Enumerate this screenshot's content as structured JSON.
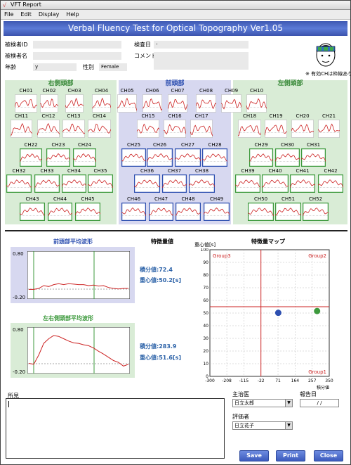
{
  "window": {
    "title": "VFT Report"
  },
  "menu": [
    "File",
    "Edit",
    "Display",
    "Help"
  ],
  "banner": "Verbal Fluency Test for Optical Topography Ver1.05",
  "patient": {
    "id_label": "被検者ID",
    "id_value": "",
    "name_label": "被検者名",
    "name_value": "",
    "age_label": "年齢",
    "age_value": "y",
    "sex_label": "性別",
    "sex_value": "Female",
    "date_label": "検査日",
    "date_value": "-",
    "comment_label": "コメント",
    "comment_value": ""
  },
  "note": "※ 有効CHは枠線あり",
  "regions": {
    "right": "右側頭部",
    "front": "前頭部",
    "left": "左側頭部"
  },
  "channels": [
    {
      "n": "CH01",
      "v": false
    },
    {
      "n": "CH02",
      "v": false
    },
    {
      "n": "CH03",
      "v": false
    },
    {
      "n": "CH04",
      "v": false
    },
    {
      "n": "CH05",
      "v": false
    },
    {
      "n": "CH06",
      "v": false
    },
    {
      "n": "CH07",
      "v": false
    },
    {
      "n": "CH08",
      "v": false
    },
    {
      "n": "CH09",
      "v": false
    },
    {
      "n": "CH10",
      "v": false
    },
    {
      "n": "CH11",
      "v": false
    },
    {
      "n": "CH12",
      "v": false
    },
    {
      "n": "CH13",
      "v": false
    },
    {
      "n": "CH14",
      "v": false
    },
    {
      "n": "CH15",
      "v": false
    },
    {
      "n": "CH16",
      "v": false
    },
    {
      "n": "CH17",
      "v": false
    },
    {
      "n": "CH18",
      "v": false
    },
    {
      "n": "CH19",
      "v": false
    },
    {
      "n": "CH20",
      "v": false
    },
    {
      "n": "CH21",
      "v": false
    },
    {
      "n": "CH22",
      "v": true
    },
    {
      "n": "CH23",
      "v": true
    },
    {
      "n": "CH24",
      "v": true
    },
    {
      "n": "CH25",
      "v": true
    },
    {
      "n": "CH26",
      "v": true
    },
    {
      "n": "CH27",
      "v": true
    },
    {
      "n": "CH28",
      "v": true
    },
    {
      "n": "CH29",
      "v": true
    },
    {
      "n": "CH30",
      "v": true
    },
    {
      "n": "CH31",
      "v": true
    },
    {
      "n": "CH32",
      "v": true
    },
    {
      "n": "CH33",
      "v": true
    },
    {
      "n": "CH34",
      "v": true
    },
    {
      "n": "CH35",
      "v": true
    },
    {
      "n": "CH36",
      "v": true
    },
    {
      "n": "CH37",
      "v": true
    },
    {
      "n": "CH38",
      "v": true
    },
    {
      "n": "CH39",
      "v": true
    },
    {
      "n": "CH40",
      "v": true
    },
    {
      "n": "CH41",
      "v": true
    },
    {
      "n": "CH42",
      "v": true
    },
    {
      "n": "CH43",
      "v": true
    },
    {
      "n": "CH44",
      "v": true
    },
    {
      "n": "CH45",
      "v": true
    },
    {
      "n": "CH46",
      "v": true
    },
    {
      "n": "CH47",
      "v": true
    },
    {
      "n": "CH48",
      "v": true
    },
    {
      "n": "CH49",
      "v": true
    },
    {
      "n": "CH50",
      "v": true
    },
    {
      "n": "CH51",
      "v": true
    },
    {
      "n": "CH52",
      "v": true
    }
  ],
  "frontal_avg": {
    "title": "前頭部平均波形",
    "ymax": "0.80",
    "ymin": "-0.20"
  },
  "temporal_avg": {
    "title": "左右側頭部平均波形",
    "ymax": "0.80",
    "ymin": "-0.20"
  },
  "features": {
    "title": "特徴量値",
    "frontal_integral": "積分値:72.4",
    "frontal_centroid": "重心値:50.2[s]",
    "temporal_integral": "積分値:283.9",
    "temporal_centroid": "重心値:51.6[s]"
  },
  "map": {
    "title": "特徴量マップ",
    "ylabel": "重心値[s]",
    "xlabel": "積分値",
    "group1": "Group1",
    "group2": "Group2",
    "group3": "Group3",
    "yticks": [
      "100",
      "90",
      "80",
      "70",
      "60",
      "50",
      "40",
      "30",
      "20",
      "10",
      "0"
    ],
    "xticks": [
      "-300",
      "-208",
      "-115",
      "-22",
      "71",
      "164",
      "257",
      "350"
    ]
  },
  "chart_data": [
    {
      "type": "scatter",
      "title": "特徴量マップ",
      "xlabel": "積分値",
      "ylabel": "重心値[s]",
      "xlim": [
        -300,
        350
      ],
      "ylim": [
        0,
        100
      ],
      "x_threshold": -22,
      "y_threshold": 55,
      "series": [
        {
          "name": "",
          "color": "#2d4fb0",
          "points": [
            [
              72.4,
              50.2
            ]
          ]
        },
        {
          "name": "",
          "color": "#3d9a3d",
          "points": [
            [
              283.9,
              51.6
            ]
          ]
        }
      ]
    },
    {
      "type": "line",
      "title": "前頭部平均波形",
      "ylim": [
        -0.2,
        0.8
      ],
      "x": [
        0,
        1,
        2,
        3,
        4,
        5,
        6,
        7,
        8,
        9,
        10,
        11,
        12,
        13,
        14,
        15,
        16,
        17,
        18,
        19,
        20
      ],
      "values": [
        0,
        0,
        0.02,
        0.08,
        0.06,
        0.1,
        0.12,
        0.1,
        0.12,
        0.11,
        0.1,
        0.1,
        0.08,
        0.09,
        0.07,
        0.08,
        0.04,
        0.02,
        0.01,
        0.02,
        0.02
      ]
    },
    {
      "type": "line",
      "title": "左右側頭部平均波形",
      "ylim": [
        -0.2,
        0.8
      ],
      "x": [
        0,
        1,
        2,
        3,
        4,
        5,
        6,
        7,
        8,
        9,
        10,
        11,
        12,
        13,
        14,
        15,
        16,
        17,
        18,
        19,
        20
      ],
      "values": [
        0.02,
        0.0,
        0.2,
        0.45,
        0.55,
        0.62,
        0.6,
        0.55,
        0.5,
        0.46,
        0.45,
        0.42,
        0.4,
        0.35,
        0.28,
        0.22,
        0.15,
        0.08,
        0.04,
        -0.04,
        0.0
      ]
    }
  ],
  "form": {
    "opinion_label": "所見",
    "doctor_label": "主治医",
    "doctor_value": "日立太郎",
    "report_date_label": "報告日",
    "report_date_value": "/ /",
    "evaluator_label": "評価者",
    "evaluator_value": "日立花子"
  },
  "buttons": {
    "save": "Save",
    "print": "Print",
    "close": "Close"
  },
  "colors": {
    "banner": "#4a66c4",
    "green": "#3d9a3d",
    "blue": "#2d4fb0",
    "frontal_bg": "#d7d8f0",
    "temporal_bg": "#d9ecd6",
    "trace": "#cc2222"
  }
}
